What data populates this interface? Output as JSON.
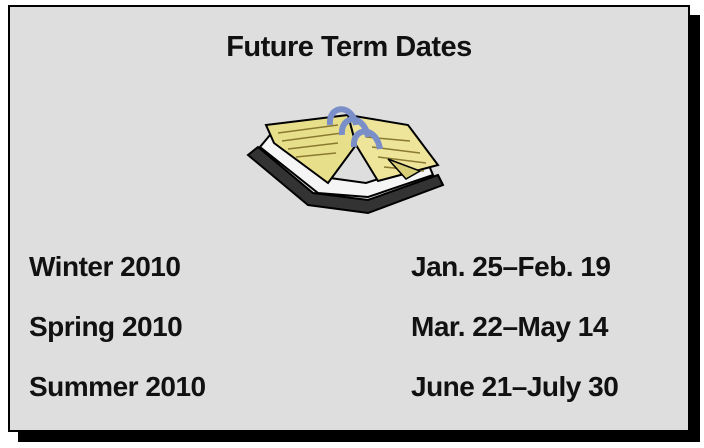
{
  "title": "Future Term Dates",
  "terms": [
    {
      "name": "Winter 2010",
      "dates": "Jan. 25–Feb. 19"
    },
    {
      "name": "Spring 2010",
      "dates": "Mar. 22–May 14"
    },
    {
      "name": "Summer 2010",
      "dates": "June 21–July 30"
    }
  ]
}
